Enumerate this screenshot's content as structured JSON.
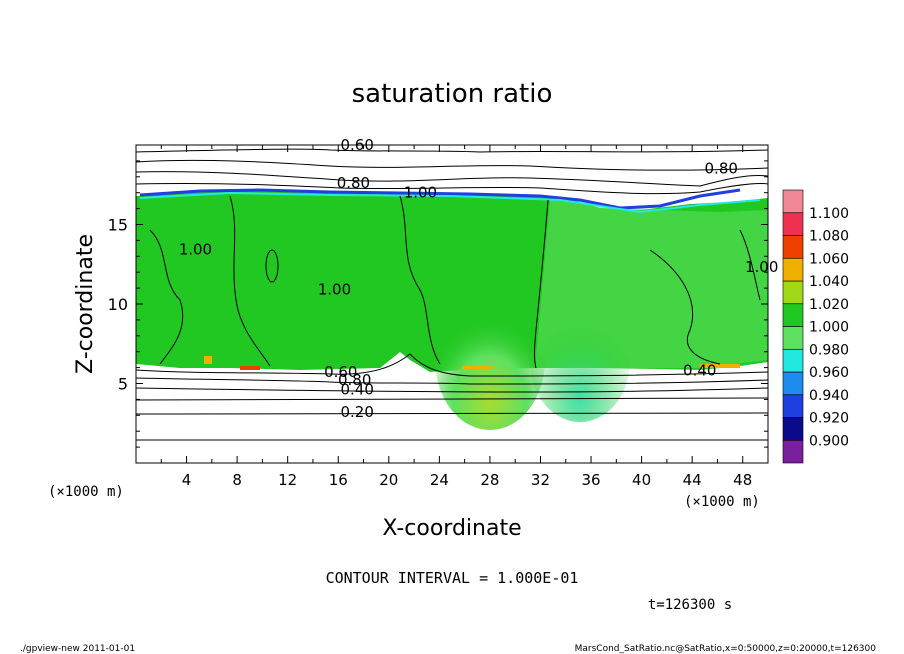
{
  "chart_data": {
    "type": "heatmap",
    "title": "saturation ratio",
    "xlabel": "X-coordinate",
    "ylabel": "Z-coordinate",
    "x_unit": "(×1000 m)",
    "y_unit": "(×1000 m)",
    "xlim": [
      0,
      50
    ],
    "ylim": [
      0,
      20
    ],
    "x_ticks": [
      4,
      8,
      12,
      16,
      20,
      24,
      28,
      32,
      36,
      40,
      44,
      48
    ],
    "y_ticks": [
      5,
      10,
      15
    ],
    "colorbar": {
      "levels": [
        0.9,
        0.92,
        0.94,
        0.96,
        0.98,
        1.0,
        1.02,
        1.04,
        1.06,
        1.08,
        1.1
      ],
      "labels": [
        "0.900",
        "0.920",
        "0.940",
        "0.960",
        "0.980",
        "1.000",
        "1.020",
        "1.040",
        "1.060",
        "1.080",
        "1.100"
      ],
      "colors": [
        "#7a1fa0",
        "#0a0a8c",
        "#1f3fe0",
        "#1f8cf0",
        "#22e8e0",
        "#5fe060",
        "#22c822",
        "#a0d818",
        "#f0b000",
        "#f04000",
        "#f03050",
        "#f08898"
      ]
    },
    "field": {
      "band_bottom_km": 6.0,
      "band_top_km": 16.8,
      "dominant_level": "1.000",
      "upper_dry_region_km": [
        16.8,
        20
      ],
      "lower_dry_region_km": [
        0,
        6.0
      ]
    },
    "contour_labels": [
      {
        "text": "0.60",
        "x": 17.5,
        "y": 19.7
      },
      {
        "text": "0.80",
        "x": 17.2,
        "y": 17.3
      },
      {
        "text": "1.00",
        "x": 22.5,
        "y": 16.7
      },
      {
        "text": "0.80",
        "x": 46.3,
        "y": 18.2
      },
      {
        "text": "1.00",
        "x": 4.7,
        "y": 13.1
      },
      {
        "text": "1.00",
        "x": 15.7,
        "y": 10.6
      },
      {
        "text": "1.00",
        "x": 49.5,
        "y": 12.0
      },
      {
        "text": "0.60",
        "x": 16.2,
        "y": 5.4
      },
      {
        "text": "0.80",
        "x": 17.3,
        "y": 4.9
      },
      {
        "text": "0.40",
        "x": 17.5,
        "y": 4.3
      },
      {
        "text": "0.20",
        "x": 17.5,
        "y": 2.9
      },
      {
        "text": "0.40",
        "x": 44.6,
        "y": 5.5
      }
    ],
    "contour_interval_text": "CONTOUR INTERVAL = 1.000E-01",
    "time_text": "t=126300 s"
  },
  "footer": {
    "left": "./gpview-new   2011-01-01",
    "right": "MarsCond_SatRatio.nc@SatRatio,x=0:50000,z=0:20000,t=126300"
  }
}
